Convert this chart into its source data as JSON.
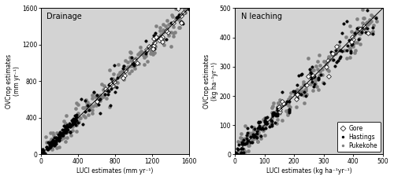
{
  "drainage": {
    "title": "Drainage",
    "xlabel": "LUCI estimates (mm yr⁻¹)",
    "ylabel": "OVCrop estimates\n(mm yr⁻¹)",
    "xlim": [
      0,
      1600
    ],
    "ylim": [
      0,
      1600
    ],
    "xticks": [
      0,
      400,
      800,
      1200,
      1600
    ],
    "yticks": [
      0,
      400,
      800,
      1200,
      1600
    ]
  },
  "nleaching": {
    "title": "N leaching",
    "xlabel": "LUCI estimates (kg ha⁻¹yr⁻¹)",
    "ylabel": "OVCrop estimates\n(kg ha⁻¹yr⁻¹)",
    "xlim": [
      0,
      500
    ],
    "ylim": [
      0,
      500
    ],
    "xticks": [
      0,
      100,
      200,
      300,
      400,
      500
    ],
    "yticks": [
      0,
      100,
      200,
      300,
      400,
      500
    ]
  },
  "background_color": "#d3d3d3",
  "gore_facecolor": "white",
  "gore_edgecolor": "black",
  "gore_marker": "D",
  "gore_markersize": 3.0,
  "hastings_facecolor": "black",
  "hastings_marker": "o",
  "hastings_markersize": 2.5,
  "pukekohe_facecolor": "#808080",
  "pukekohe_marker": "o",
  "pukekohe_markersize": 3.0,
  "seed": 12345,
  "n_gore_drainage": 30,
  "n_hastings_drainage": 150,
  "n_pukekohe_drainage": 200,
  "n_gore_nleach": 25,
  "n_hastings_nleach": 150,
  "n_pukekohe_nleach": 200
}
